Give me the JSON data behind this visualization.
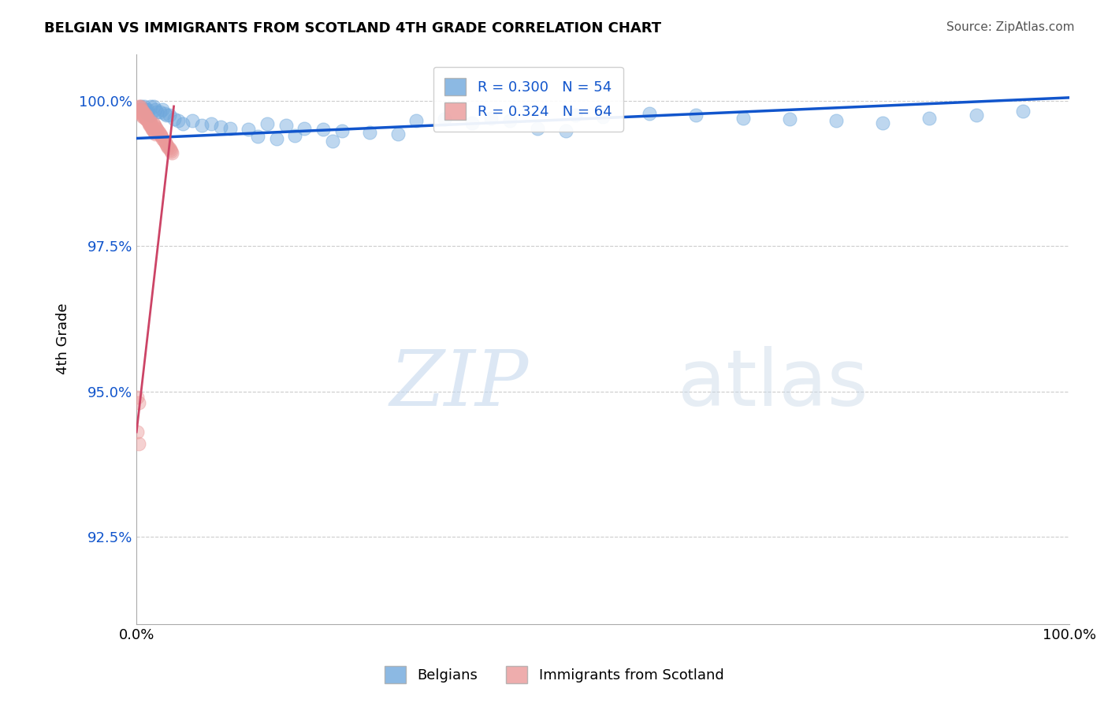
{
  "title": "BELGIAN VS IMMIGRANTS FROM SCOTLAND 4TH GRADE CORRELATION CHART",
  "source": "Source: ZipAtlas.com",
  "ylabel": "4th Grade",
  "xlim": [
    0.0,
    1.0
  ],
  "ylim": [
    0.91,
    1.008
  ],
  "yticks": [
    0.925,
    0.95,
    0.975,
    1.0
  ],
  "ytick_labels": [
    "92.5%",
    "95.0%",
    "97.5%",
    "100.0%"
  ],
  "xtick_labels": [
    "0.0%",
    "100.0%"
  ],
  "xticks": [
    0.0,
    1.0
  ],
  "legend_r_blue": "R = 0.300",
  "legend_n_blue": "N = 54",
  "legend_r_pink": "R = 0.324",
  "legend_n_pink": "N = 64",
  "legend_label_blue": "Belgians",
  "legend_label_pink": "Immigrants from Scotland",
  "blue_color": "#6fa8dc",
  "pink_color": "#ea9999",
  "blue_line_color": "#1155cc",
  "pink_line_color": "#cc4466",
  "background_color": "#ffffff",
  "belgians_x": [
    0.005,
    0.008,
    0.01,
    0.012,
    0.015,
    0.018,
    0.01,
    0.012,
    0.015,
    0.02,
    0.022,
    0.025,
    0.028,
    0.03,
    0.032,
    0.035,
    0.04,
    0.045,
    0.05,
    0.06,
    0.07,
    0.08,
    0.09,
    0.1,
    0.12,
    0.14,
    0.16,
    0.18,
    0.2,
    0.22,
    0.25,
    0.28,
    0.3,
    0.33,
    0.36,
    0.38,
    0.4,
    0.43,
    0.46,
    0.5,
    0.55,
    0.6,
    0.65,
    0.7,
    0.75,
    0.8,
    0.85,
    0.9,
    0.95,
    0.13,
    0.15,
    0.17,
    0.21,
    0.47
  ],
  "belgians_y": [
    0.999,
    0.999,
    0.9985,
    0.9985,
    0.999,
    0.999,
    0.998,
    0.9978,
    0.9975,
    0.9985,
    0.998,
    0.998,
    0.9985,
    0.9978,
    0.9975,
    0.9975,
    0.9968,
    0.9965,
    0.996,
    0.9965,
    0.9958,
    0.996,
    0.9955,
    0.9952,
    0.995,
    0.996,
    0.9958,
    0.9952,
    0.995,
    0.9948,
    0.9945,
    0.9942,
    0.9965,
    0.9968,
    0.9962,
    0.997,
    0.9965,
    0.9952,
    0.9948,
    0.9972,
    0.9978,
    0.9975,
    0.997,
    0.9968,
    0.9965,
    0.9962,
    0.997,
    0.9975,
    0.9982,
    0.9938,
    0.9935,
    0.994,
    0.993,
    0.9975
  ],
  "scotland_x": [
    0.002,
    0.003,
    0.003,
    0.004,
    0.005,
    0.005,
    0.006,
    0.006,
    0.007,
    0.007,
    0.008,
    0.008,
    0.009,
    0.009,
    0.01,
    0.01,
    0.011,
    0.011,
    0.012,
    0.012,
    0.013,
    0.013,
    0.014,
    0.014,
    0.015,
    0.015,
    0.016,
    0.016,
    0.017,
    0.017,
    0.018,
    0.018,
    0.019,
    0.019,
    0.02,
    0.02,
    0.021,
    0.022,
    0.023,
    0.024,
    0.025,
    0.026,
    0.027,
    0.028,
    0.029,
    0.03,
    0.031,
    0.032,
    0.033,
    0.034,
    0.035,
    0.036,
    0.037,
    0.038,
    0.002,
    0.003,
    0.004,
    0.005,
    0.006,
    0.007,
    0.001,
    0.002,
    0.001,
    0.002
  ],
  "scotland_y": [
    0.999,
    0.9988,
    0.9985,
    0.999,
    0.9985,
    0.9982,
    0.998,
    0.9978,
    0.9982,
    0.998,
    0.9978,
    0.9975,
    0.9972,
    0.997,
    0.9968,
    0.9975,
    0.9972,
    0.997,
    0.9968,
    0.9965,
    0.9962,
    0.996,
    0.9958,
    0.9965,
    0.9962,
    0.996,
    0.9958,
    0.9955,
    0.9952,
    0.995,
    0.9948,
    0.996,
    0.9958,
    0.9945,
    0.9942,
    0.9955,
    0.9952,
    0.995,
    0.9948,
    0.9945,
    0.9942,
    0.994,
    0.9938,
    0.9935,
    0.9932,
    0.993,
    0.9928,
    0.9925,
    0.9922,
    0.992,
    0.9918,
    0.9915,
    0.9912,
    0.991,
    0.9985,
    0.9982,
    0.998,
    0.9978,
    0.9975,
    0.9972,
    0.949,
    0.948,
    0.943,
    0.941
  ],
  "blue_trendline_x": [
    0.0,
    1.0
  ],
  "blue_trendline_y": [
    0.9935,
    1.0005
  ],
  "pink_trendline_x": [
    0.0,
    0.04
  ],
  "pink_trendline_y": [
    0.943,
    0.999
  ]
}
